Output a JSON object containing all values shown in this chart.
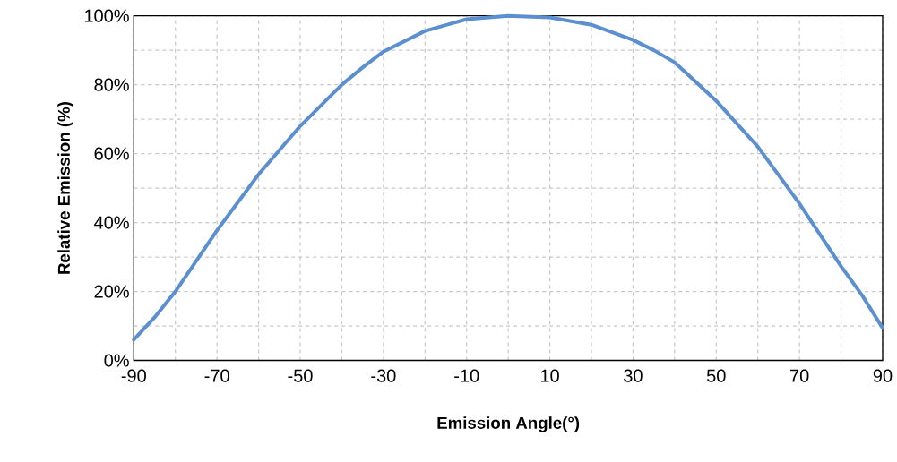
{
  "chart_data": {
    "type": "line",
    "xlabel": "Emission Angle(°)",
    "ylabel": "Relative Emission (%)",
    "x": [
      -90,
      -85,
      -80,
      -70,
      -60,
      -50,
      -40,
      -35,
      -30,
      -20,
      -10,
      0,
      10,
      20,
      30,
      35,
      40,
      50,
      60,
      70,
      80,
      85,
      90
    ],
    "series": [
      {
        "color": "#5b8fd0",
        "values": [
          6,
          12.5,
          20,
          37.7,
          54,
          68,
          80,
          85,
          89.6,
          95.6,
          99,
          100,
          99.5,
          97.4,
          93,
          90,
          86.5,
          75.3,
          62,
          45.5,
          27.3,
          19,
          9.4
        ]
      }
    ],
    "xlim": [
      -90,
      90
    ],
    "xticks": [
      -90,
      {
        "value": -80,
        "label": null
      },
      -70,
      {
        "value": -60,
        "label": null
      },
      -50,
      {
        "value": -40,
        "label": null
      },
      -30,
      {
        "value": -20,
        "label": null
      },
      -10,
      {
        "value": 0,
        "label": null
      },
      10,
      {
        "value": 20,
        "label": null
      },
      30,
      {
        "value": 40,
        "label": null
      },
      50,
      {
        "value": 60,
        "label": null
      },
      70,
      {
        "value": 80,
        "label": null
      },
      90
    ],
    "ylim": [
      0,
      100
    ],
    "yticks": [
      {
        "value": 0,
        "label": "0%"
      },
      {
        "value": 10,
        "label": null
      },
      {
        "value": 20,
        "label": "20%"
      },
      {
        "value": 30,
        "label": null
      },
      {
        "value": 40,
        "label": "40%"
      },
      {
        "value": 50,
        "label": null
      },
      {
        "value": 60,
        "label": "60%"
      },
      {
        "value": 70,
        "label": null
      },
      {
        "value": 80,
        "label": "80%"
      },
      {
        "value": 90,
        "label": null
      },
      {
        "value": 100,
        "label": "100%"
      }
    ],
    "grid": true,
    "marker": "none",
    "line_style": "solid"
  }
}
